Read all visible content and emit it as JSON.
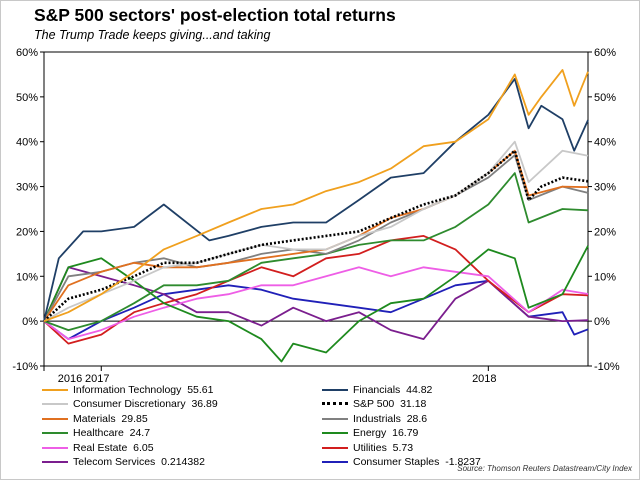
{
  "header": {
    "title": "S&P 500 sectors' post-election total returns",
    "subtitle": "The Trump Trade keeps giving...and taking"
  },
  "source": "Source: Thomson Reuters Datastream/City Index",
  "chart_data": {
    "type": "line",
    "title": "S&P 500 sectors' post-election total returns",
    "subtitle": "The Trump Trade keeps giving...and taking",
    "xlabel": "",
    "ylabel": "",
    "y_unit": "%",
    "ylim": [
      -10,
      60
    ],
    "yticks": [
      -10,
      0,
      10,
      20,
      30,
      40,
      50,
      60
    ],
    "ytick_labels": [
      "-10%",
      "0%",
      "10%",
      "20%",
      "30%",
      "40%",
      "50%",
      "60%"
    ],
    "xlim": [
      "2016-11-08",
      "2018-04-05"
    ],
    "xticks": [
      "2016-11-08",
      "2017-01-01",
      "2018-01-01"
    ],
    "xtick_labels": [
      "2016",
      "2017",
      "2018"
    ],
    "grid": false,
    "zero_line": true,
    "dual_y_axis": true,
    "legend_position": "bottom",
    "series": [
      {
        "name": "Information Technology",
        "legend_value": "55.61",
        "color": "#f0a01e",
        "style": "solid",
        "x": [
          "2016-11-08",
          "2016-12-01",
          "2017-01-01",
          "2017-02-01",
          "2017-03-01",
          "2017-04-01",
          "2017-05-01",
          "2017-06-01",
          "2017-07-01",
          "2017-08-01",
          "2017-09-01",
          "2017-10-01",
          "2017-11-01",
          "2017-12-01",
          "2018-01-01",
          "2018-01-26",
          "2018-02-08",
          "2018-02-20",
          "2018-03-12",
          "2018-03-23",
          "2018-04-05"
        ],
        "y": [
          0,
          2,
          6,
          11,
          16,
          19,
          22,
          25,
          26,
          29,
          31,
          34,
          39,
          40,
          45,
          55,
          46,
          50,
          56,
          48,
          55.61
        ]
      },
      {
        "name": "Financials",
        "legend_value": "44.82",
        "color": "#1f3f66",
        "style": "solid",
        "x": [
          "2016-11-08",
          "2016-11-22",
          "2016-12-15",
          "2017-01-01",
          "2017-02-01",
          "2017-03-01",
          "2017-04-13",
          "2017-05-01",
          "2017-06-01",
          "2017-07-01",
          "2017-08-01",
          "2017-09-01",
          "2017-10-01",
          "2017-11-01",
          "2017-12-01",
          "2018-01-01",
          "2018-01-26",
          "2018-02-08",
          "2018-02-20",
          "2018-03-12",
          "2018-03-23",
          "2018-04-05"
        ],
        "y": [
          0,
          14,
          20,
          20,
          21,
          26,
          18,
          19,
          21,
          22,
          22,
          27,
          32,
          33,
          40,
          46,
          54,
          43,
          48,
          45,
          38,
          44.82
        ]
      },
      {
        "name": "Consumer Discretionary",
        "legend_value": "36.89",
        "color": "#c8c8c8",
        "style": "solid",
        "x": [
          "2016-11-08",
          "2016-12-01",
          "2017-01-01",
          "2017-02-01",
          "2017-03-01",
          "2017-04-01",
          "2017-05-01",
          "2017-06-01",
          "2017-07-01",
          "2017-08-01",
          "2017-09-01",
          "2017-10-01",
          "2017-11-01",
          "2017-12-01",
          "2018-01-01",
          "2018-01-26",
          "2018-02-08",
          "2018-03-12",
          "2018-04-05"
        ],
        "y": [
          0,
          3,
          6,
          9,
          12,
          13,
          15,
          17,
          16,
          16,
          19,
          21,
          25,
          28,
          33,
          40,
          31,
          38,
          36.89
        ]
      },
      {
        "name": "S&P 500",
        "legend_value": "31.18",
        "color": "#000000",
        "style": "dotted",
        "x": [
          "2016-11-08",
          "2016-12-01",
          "2017-01-01",
          "2017-02-01",
          "2017-03-01",
          "2017-04-01",
          "2017-05-01",
          "2017-06-01",
          "2017-07-01",
          "2017-08-01",
          "2017-09-01",
          "2017-10-01",
          "2017-11-01",
          "2017-12-01",
          "2018-01-01",
          "2018-01-26",
          "2018-02-08",
          "2018-02-20",
          "2018-03-12",
          "2018-04-05"
        ],
        "y": [
          0,
          5,
          7,
          10,
          13,
          13,
          15,
          17,
          18,
          19,
          20,
          23,
          26,
          28,
          33,
          38,
          27,
          30,
          32,
          31.18
        ]
      },
      {
        "name": "Materials",
        "legend_value": "29.85",
        "color": "#e07020",
        "style": "solid",
        "x": [
          "2016-11-08",
          "2016-12-01",
          "2017-01-01",
          "2017-02-01",
          "2017-03-01",
          "2017-04-01",
          "2017-05-01",
          "2017-06-01",
          "2017-07-01",
          "2017-08-01",
          "2017-09-01",
          "2017-10-01",
          "2017-11-01",
          "2017-12-01",
          "2018-01-01",
          "2018-01-26",
          "2018-02-08",
          "2018-03-12",
          "2018-04-05"
        ],
        "y": [
          0,
          8,
          11,
          13,
          12,
          12,
          13,
          14,
          15,
          16,
          19,
          23,
          25,
          28,
          33,
          38,
          28,
          30,
          29.85
        ]
      },
      {
        "name": "Industrials",
        "legend_value": "28.6",
        "color": "#808080",
        "style": "solid",
        "x": [
          "2016-11-08",
          "2016-12-01",
          "2017-01-01",
          "2017-02-01",
          "2017-03-01",
          "2017-04-01",
          "2017-05-01",
          "2017-06-01",
          "2017-07-01",
          "2017-08-01",
          "2017-09-01",
          "2017-10-01",
          "2017-11-01",
          "2017-12-01",
          "2018-01-01",
          "2018-01-26",
          "2018-02-08",
          "2018-03-12",
          "2018-04-05"
        ],
        "y": [
          0,
          10,
          11,
          13,
          14,
          12,
          13,
          15,
          16,
          15,
          18,
          22,
          25,
          28,
          32,
          37,
          27,
          30,
          28.6
        ]
      },
      {
        "name": "Healthcare",
        "legend_value": "24.7",
        "color": "#2e8b2e",
        "style": "solid",
        "x": [
          "2016-11-08",
          "2016-12-01",
          "2017-01-01",
          "2017-02-01",
          "2017-03-01",
          "2017-04-01",
          "2017-05-01",
          "2017-06-01",
          "2017-07-01",
          "2017-08-01",
          "2017-09-01",
          "2017-10-01",
          "2017-11-01",
          "2017-12-01",
          "2018-01-01",
          "2018-01-26",
          "2018-02-08",
          "2018-03-12",
          "2018-04-05"
        ],
        "y": [
          0,
          -2,
          0,
          4,
          8,
          8,
          9,
          13,
          14,
          15,
          17,
          18,
          18,
          21,
          26,
          33,
          22,
          25,
          24.7
        ]
      },
      {
        "name": "Energy",
        "legend_value": "16.79",
        "color": "#1e8a1e",
        "style": "solid",
        "x": [
          "2016-11-08",
          "2016-12-01",
          "2017-01-01",
          "2017-02-01",
          "2017-03-01",
          "2017-04-01",
          "2017-05-01",
          "2017-06-01",
          "2017-06-20",
          "2017-07-01",
          "2017-08-01",
          "2017-09-01",
          "2017-10-01",
          "2017-11-01",
          "2017-12-01",
          "2018-01-01",
          "2018-01-26",
          "2018-02-08",
          "2018-03-12",
          "2018-04-05"
        ],
        "y": [
          0,
          12,
          14,
          9,
          4,
          1,
          0,
          -4,
          -9,
          -5,
          -7,
          0,
          4,
          5,
          10,
          16,
          14,
          3,
          6,
          16.79
        ]
      },
      {
        "name": "Real Estate",
        "legend_value": "6.05",
        "color": "#ee5ee6",
        "style": "solid",
        "x": [
          "2016-11-08",
          "2016-12-01",
          "2017-01-01",
          "2017-02-01",
          "2017-03-01",
          "2017-04-01",
          "2017-05-01",
          "2017-06-01",
          "2017-07-01",
          "2017-08-01",
          "2017-09-01",
          "2017-10-01",
          "2017-11-01",
          "2017-12-01",
          "2018-01-01",
          "2018-02-08",
          "2018-03-12",
          "2018-04-05"
        ],
        "y": [
          0,
          -4,
          -2,
          1,
          3,
          5,
          6,
          8,
          8,
          10,
          12,
          10,
          12,
          11,
          10,
          2,
          7,
          6.05
        ]
      },
      {
        "name": "Utilities",
        "legend_value": "5.73",
        "color": "#d21e1e",
        "style": "solid",
        "x": [
          "2016-11-08",
          "2016-12-01",
          "2017-01-01",
          "2017-02-01",
          "2017-03-01",
          "2017-04-01",
          "2017-05-01",
          "2017-06-01",
          "2017-07-01",
          "2017-08-01",
          "2017-09-01",
          "2017-10-01",
          "2017-11-01",
          "2017-12-01",
          "2018-01-01",
          "2018-02-08",
          "2018-03-12",
          "2018-04-05"
        ],
        "y": [
          0,
          -5,
          -3,
          2,
          4,
          6,
          9,
          12,
          10,
          14,
          15,
          18,
          19,
          16,
          9,
          2,
          6,
          5.73
        ]
      },
      {
        "name": "Telecom Services",
        "legend_value": "0.214382",
        "color": "#7b1e8e",
        "style": "solid",
        "x": [
          "2016-11-08",
          "2016-12-01",
          "2017-01-01",
          "2017-02-01",
          "2017-03-01",
          "2017-04-01",
          "2017-05-01",
          "2017-06-01",
          "2017-07-01",
          "2017-08-01",
          "2017-09-01",
          "2017-10-01",
          "2017-11-01",
          "2017-12-01",
          "2018-01-01",
          "2018-02-08",
          "2018-03-12",
          "2018-04-05"
        ],
        "y": [
          0,
          12,
          10,
          8,
          6,
          2,
          2,
          -1,
          3,
          0,
          2,
          -2,
          -4,
          5,
          9,
          1,
          0,
          0.214382
        ]
      },
      {
        "name": "Consumer Staples",
        "legend_value": "-1.8237",
        "color": "#2020b8",
        "style": "solid",
        "x": [
          "2016-11-08",
          "2016-12-01",
          "2017-01-01",
          "2017-02-01",
          "2017-03-01",
          "2017-04-01",
          "2017-05-01",
          "2017-06-01",
          "2017-07-01",
          "2017-08-01",
          "2017-09-01",
          "2017-10-01",
          "2017-11-01",
          "2017-12-01",
          "2018-01-01",
          "2018-02-08",
          "2018-03-12",
          "2018-03-23",
          "2018-04-05"
        ],
        "y": [
          0,
          -4,
          0,
          3,
          6,
          7,
          8,
          7,
          5,
          4,
          3,
          2,
          5,
          8,
          9,
          1,
          2,
          -3,
          -1.8237
        ]
      }
    ]
  }
}
